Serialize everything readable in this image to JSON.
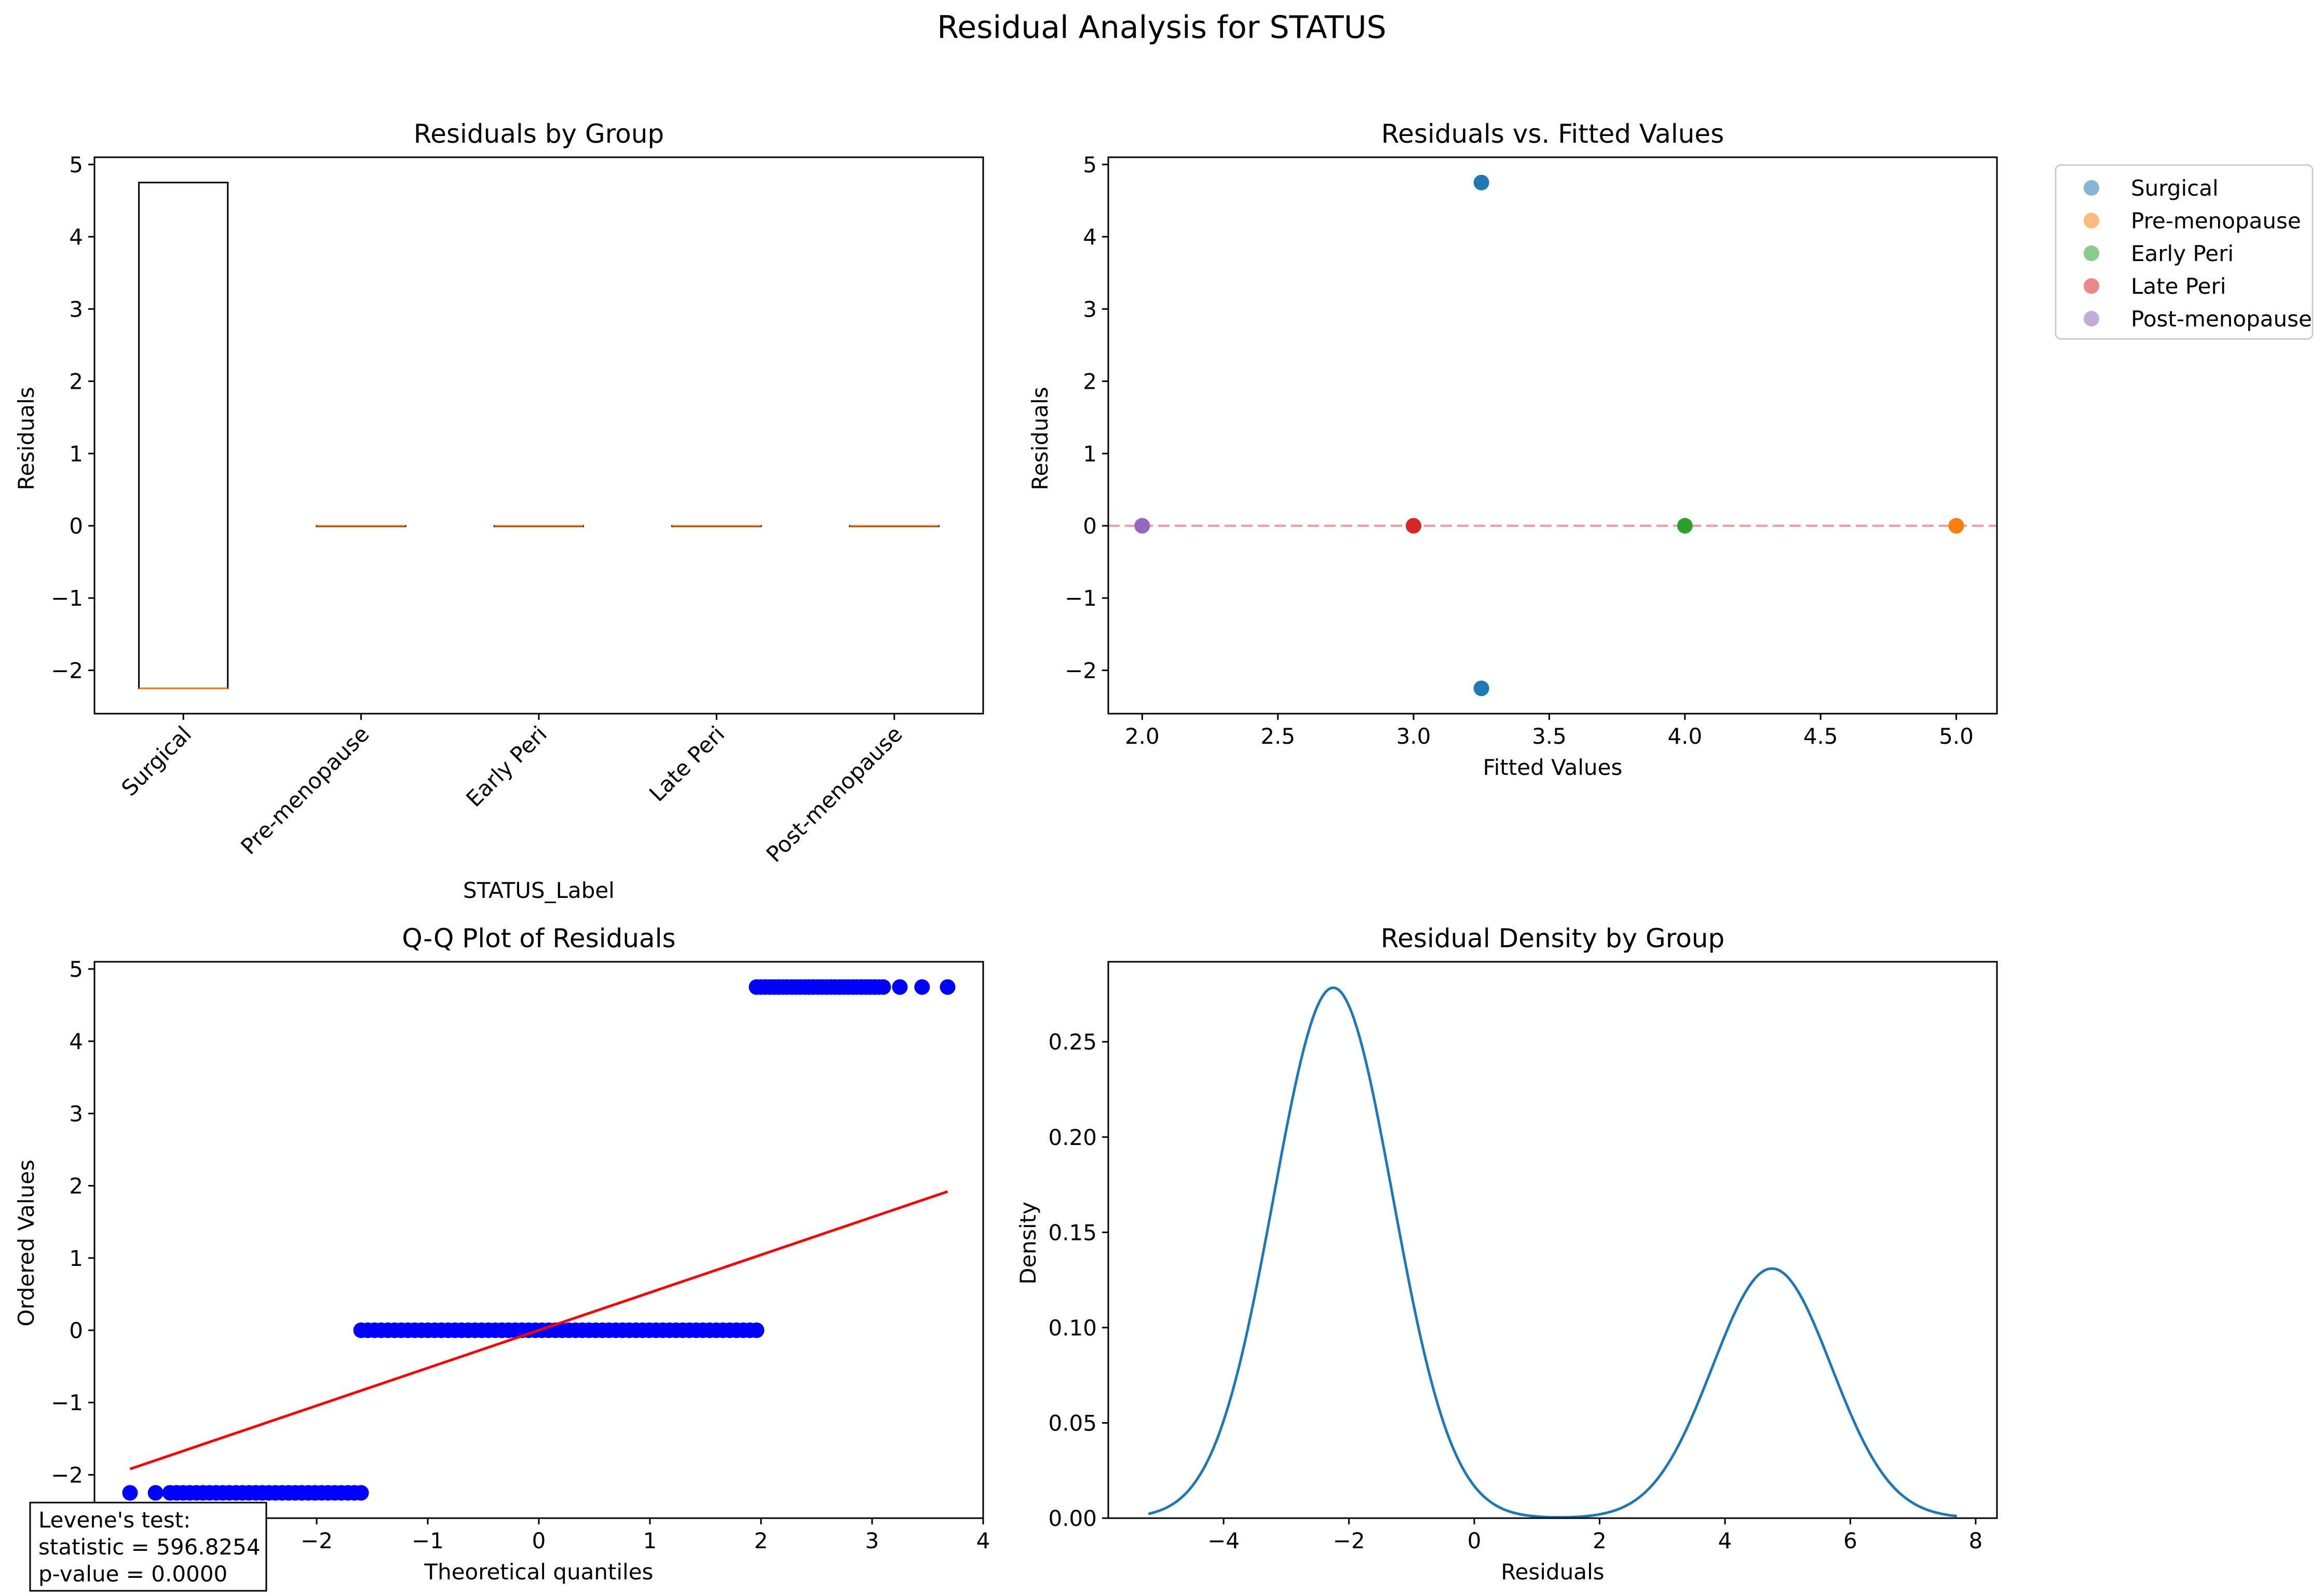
{
  "figure_title": "Residual Analysis for STATUS",
  "colors": {
    "surgical": "#1f77b4",
    "pre_menopause": "#ff7f0e",
    "early_peri": "#2ca02c",
    "late_peri": "#d62728",
    "post_menopause": "#9467bd",
    "median_line": "#ff7f0e",
    "qq_points": "#0000ff",
    "qq_fit": "#ff0000",
    "zero_line": "#ff9999",
    "density_line": "#1f77b4"
  },
  "chart_data": [
    {
      "type": "box",
      "title": "Residuals by Group",
      "xlabel": "STATUS_Label",
      "ylabel": "Residuals",
      "categories": [
        "Surgical",
        "Pre-menopause",
        "Early Peri",
        "Late Peri",
        "Post-menopause"
      ],
      "boxes": [
        {
          "q1": -2.25,
          "median": -2.25,
          "q3": 4.75,
          "whisker_low": -2.25,
          "whisker_high": 4.75
        },
        {
          "q1": 0,
          "median": 0,
          "q3": 0,
          "whisker_low": 0,
          "whisker_high": 0
        },
        {
          "q1": 0,
          "median": 0,
          "q3": 0,
          "whisker_low": 0,
          "whisker_high": 0
        },
        {
          "q1": 0,
          "median": 0,
          "q3": 0,
          "whisker_low": 0,
          "whisker_high": 0
        },
        {
          "q1": 0,
          "median": 0,
          "q3": 0,
          "whisker_low": 0,
          "whisker_high": 0
        }
      ],
      "ylim": [
        -2.6,
        5.1
      ],
      "yticks": [
        -2,
        -1,
        0,
        1,
        2,
        3,
        4,
        5
      ],
      "ytick_labels": [
        "−2",
        "−1",
        "0",
        "1",
        "2",
        "3",
        "4",
        "5"
      ]
    },
    {
      "type": "scatter",
      "title": "Residuals vs. Fitted Values",
      "xlabel": "Fitted Values",
      "ylabel": "Residuals",
      "xlim": [
        1.875,
        5.15
      ],
      "ylim": [
        -2.6,
        5.1
      ],
      "xticks": [
        2.0,
        2.5,
        3.0,
        3.5,
        4.0,
        4.5,
        5.0
      ],
      "xtick_labels": [
        "2.0",
        "2.5",
        "3.0",
        "3.5",
        "4.0",
        "4.5",
        "5.0"
      ],
      "yticks": [
        -2,
        -1,
        0,
        1,
        2,
        3,
        4,
        5
      ],
      "ytick_labels": [
        "−2",
        "−1",
        "0",
        "1",
        "2",
        "3",
        "4",
        "5"
      ],
      "reference_line_y": 0,
      "legend_position": "outside-top-right",
      "series": [
        {
          "name": "Surgical",
          "color_key": "surgical",
          "points": [
            [
              3.25,
              4.75
            ],
            [
              3.25,
              -2.25
            ]
          ]
        },
        {
          "name": "Pre-menopause",
          "color_key": "pre_menopause",
          "points": [
            [
              5.0,
              0
            ]
          ]
        },
        {
          "name": "Early Peri",
          "color_key": "early_peri",
          "points": [
            [
              4.0,
              0
            ]
          ]
        },
        {
          "name": "Late Peri",
          "color_key": "late_peri",
          "points": [
            [
              3.0,
              0
            ]
          ]
        },
        {
          "name": "Post-menopause",
          "color_key": "post_menopause",
          "points": [
            [
              2.0,
              0
            ]
          ]
        }
      ]
    },
    {
      "type": "scatter",
      "title": "Q-Q Plot of Residuals",
      "xlabel": "Theoretical quantiles",
      "ylabel": "Ordered Values",
      "xlim": [
        -4.0,
        4.0
      ],
      "ylim": [
        -2.6,
        5.1
      ],
      "xticks": [
        -2,
        -1,
        0,
        1,
        2,
        3,
        4
      ],
      "xtick_labels": [
        "−2",
        "−1",
        "0",
        "1",
        "2",
        "3",
        "4"
      ],
      "yticks": [
        -2,
        -1,
        0,
        1,
        2,
        3,
        4,
        5
      ],
      "ytick_labels": [
        "−2",
        "−1",
        "0",
        "1",
        "2",
        "3",
        "4",
        "5"
      ],
      "point_runs": [
        {
          "x_start": -3.68,
          "x_end": -3.68,
          "y": -2.25,
          "count": 1
        },
        {
          "x_start": -3.45,
          "x_end": -3.45,
          "y": -2.25,
          "count": 1
        },
        {
          "x_start": -3.32,
          "x_end": -1.6,
          "y": -2.25,
          "count": 30
        },
        {
          "x_start": -1.6,
          "x_end": 1.96,
          "y": 0,
          "count": 60
        },
        {
          "x_start": 1.96,
          "x_end": 3.1,
          "y": 4.75,
          "count": 30
        },
        {
          "x_start": 3.25,
          "x_end": 3.25,
          "y": 4.75,
          "count": 1
        },
        {
          "x_start": 3.45,
          "x_end": 3.45,
          "y": 4.75,
          "count": 1
        },
        {
          "x_start": 3.68,
          "x_end": 3.68,
          "y": 4.75,
          "count": 1
        }
      ],
      "fit_line": [
        [
          -3.68,
          -1.92
        ],
        [
          3.68,
          1.92
        ]
      ],
      "annotation": [
        "Levene's test:",
        "statistic = 596.8254",
        "p-value = 0.0000"
      ]
    },
    {
      "type": "line",
      "title": "Residual Density by Group",
      "xlabel": "Residuals",
      "ylabel": "Density",
      "xlim": [
        -5.84,
        8.34
      ],
      "ylim": [
        0,
        0.292
      ],
      "xticks": [
        -4,
        -2,
        0,
        2,
        4,
        6,
        8
      ],
      "xtick_labels": [
        "−4",
        "−2",
        "0",
        "2",
        "4",
        "6",
        "8"
      ],
      "yticks": [
        0,
        0.05,
        0.1,
        0.15,
        0.2,
        0.25
      ],
      "ytick_labels": [
        "0.00",
        "0.05",
        "0.10",
        "0.15",
        "0.20",
        "0.25"
      ],
      "x_range": [
        -5.2,
        7.7
      ],
      "components": [
        {
          "mean": -2.25,
          "sd": 0.95,
          "weight": 0.663
        },
        {
          "mean": 4.75,
          "sd": 0.95,
          "weight": 0.312
        }
      ]
    }
  ]
}
